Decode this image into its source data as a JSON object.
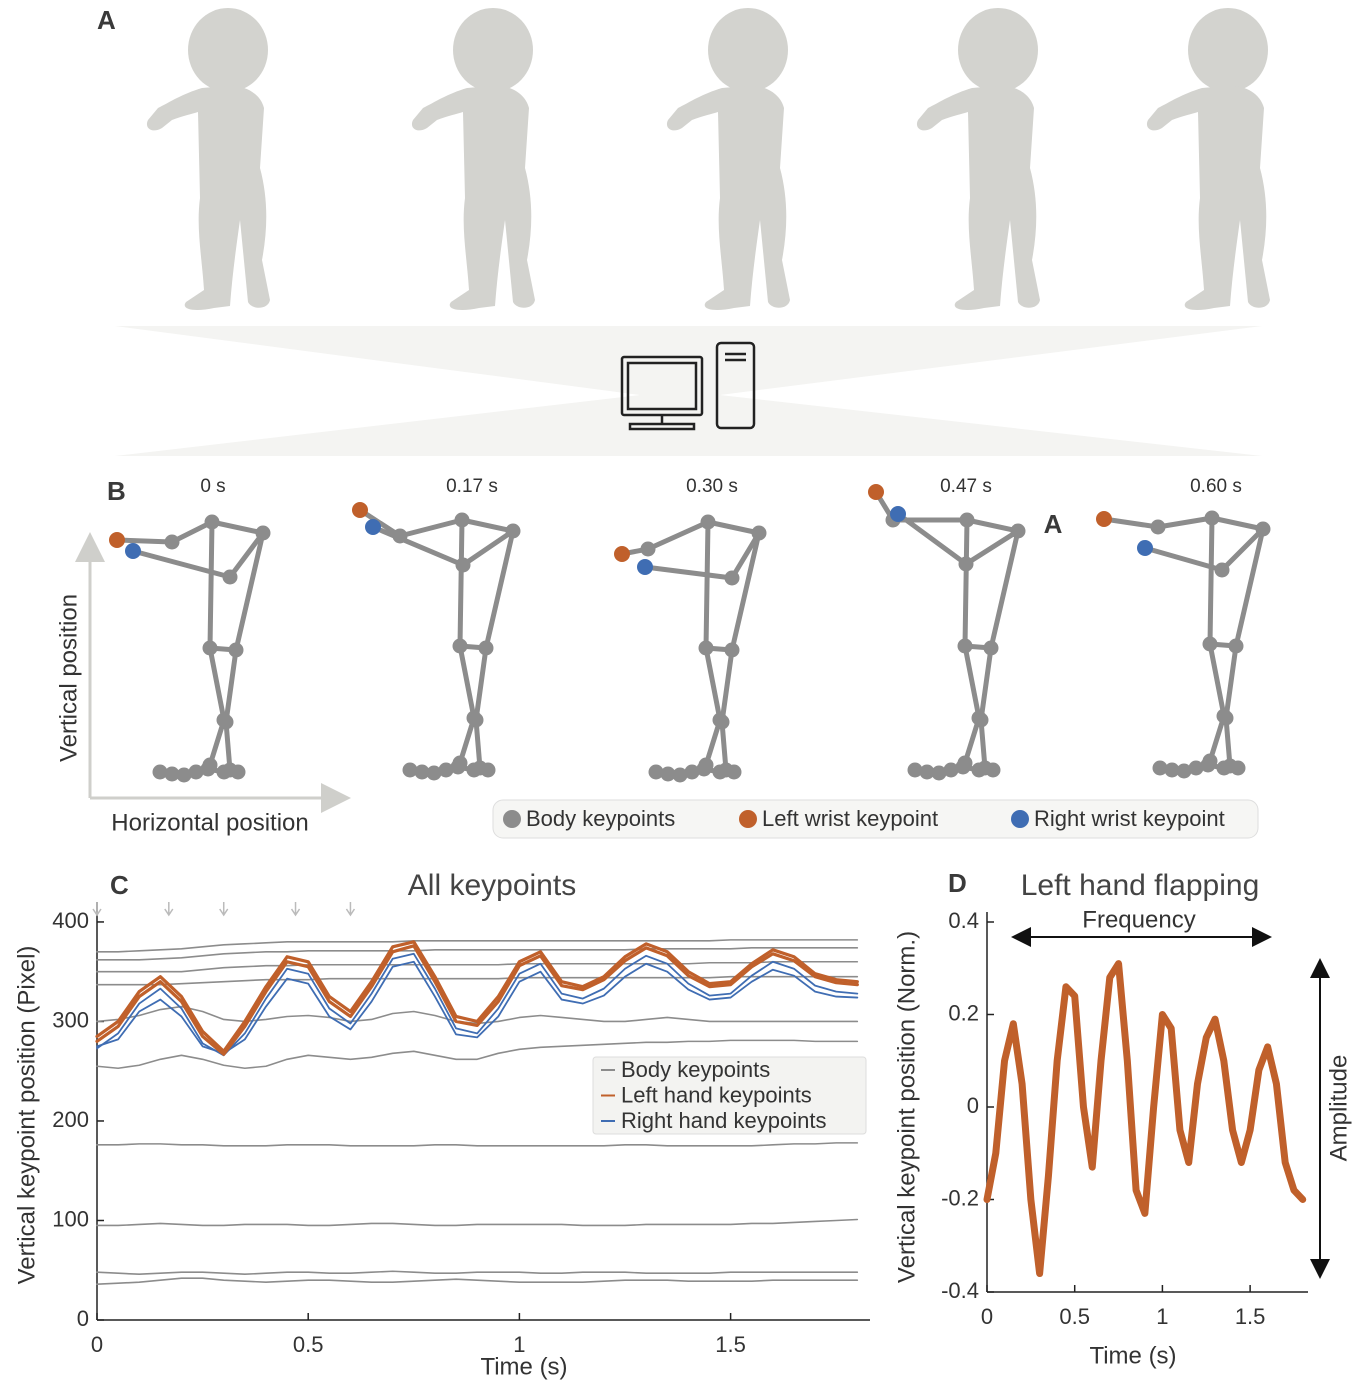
{
  "panel_labels": [
    "A",
    "B",
    "C",
    "D"
  ],
  "skeleton_panel": {
    "frame_times": [
      "0 s",
      "0.17 s",
      "0.30 s",
      "0.47 s",
      "0.60 s"
    ],
    "stray_label": "A",
    "x_label": "Horizontal position",
    "y_label": "Vertical position",
    "legend": [
      {
        "label": "Body keypoints",
        "color": "#8c8c8c"
      },
      {
        "label": "Left wrist keypoint",
        "color": "#c0602b"
      },
      {
        "label": "Right wrist keypoint",
        "color": "#3f6db3"
      }
    ]
  },
  "chart_data": [
    {
      "type": "line",
      "title": "All keypoints",
      "x_label": "Time (s)",
      "y_label": "Vertical keypoint position (Pixel)",
      "x": [
        0,
        0.05,
        0.1,
        0.15,
        0.2,
        0.25,
        0.3,
        0.35,
        0.4,
        0.45,
        0.5,
        0.55,
        0.6,
        0.65,
        0.7,
        0.75,
        0.8,
        0.85,
        0.9,
        0.95,
        1,
        1.05,
        1.1,
        1.15,
        1.2,
        1.25,
        1.3,
        1.35,
        1.4,
        1.45,
        1.5,
        1.55,
        1.6,
        1.65,
        1.7,
        1.75,
        1.8
      ],
      "xlim": [
        0,
        1.83
      ],
      "ylim": [
        0,
        410
      ],
      "xticks": [
        0,
        0.5,
        1,
        1.5
      ],
      "yticks": [
        0,
        100,
        200,
        300,
        400
      ],
      "frame_markers": [
        0,
        0.17,
        0.3,
        0.47,
        0.6
      ],
      "legend": true,
      "series": [
        {
          "name": "Body keypoints",
          "color": "#8c8c8c",
          "values": [
            [
              370,
              370,
              371,
              372,
              373,
              375,
              377,
              378,
              379,
              380,
              380,
              380,
              380,
              380,
              380,
              381,
              381,
              381,
              381,
              381,
              381,
              381,
              381,
              381,
              381,
              381,
              381,
              381,
              381,
              381,
              382,
              382,
              382,
              382,
              382,
              382,
              382
            ],
            [
              362,
              362,
              362,
              363,
              364,
              366,
              368,
              369,
              370,
              370,
              371,
              371,
              371,
              371,
              371,
              371,
              372,
              372,
              372,
              372,
              372,
              372,
              372,
              372,
              372,
              372,
              373,
              373,
              373,
              373,
              373,
              374,
              374,
              374,
              374,
              374,
              374
            ],
            [
              350,
              350,
              350,
              350,
              350,
              352,
              354,
              355,
              356,
              356,
              357,
              357,
              357,
              357,
              357,
              357,
              357,
              357,
              357,
              357,
              358,
              358,
              358,
              358,
              358,
              358,
              358,
              358,
              358,
              359,
              359,
              359,
              360,
              360,
              360,
              360,
              360
            ],
            [
              337,
              337,
              337,
              337,
              338,
              339,
              340,
              341,
              342,
              342,
              342,
              343,
              343,
              343,
              343,
              343,
              343,
              343,
              343,
              343,
              344,
              344,
              344,
              344,
              344,
              344,
              344,
              344,
              344,
              344,
              345,
              345,
              345,
              345,
              345,
              345,
              345
            ],
            [
              300,
              302,
              306,
              312,
              315,
              310,
              302,
              300,
              302,
              305,
              306,
              304,
              300,
              302,
              308,
              310,
              306,
              300,
              298,
              300,
              304,
              306,
              304,
              302,
              300,
              300,
              302,
              304,
              302,
              300,
              300,
              300,
              300,
              300,
              300,
              300,
              300
            ],
            [
              255,
              253,
              256,
              262,
              266,
              262,
              256,
              253,
              255,
              262,
              266,
              264,
              262,
              264,
              268,
              270,
              266,
              262,
              262,
              268,
              272,
              274,
              275,
              276,
              277,
              278,
              279,
              279,
              280,
              280,
              281,
              281,
              281,
              281,
              280,
              280,
              280
            ],
            [
              176,
              176,
              177,
              177,
              176,
              176,
              175,
              175,
              175,
              176,
              176,
              176,
              175,
              175,
              175,
              175,
              176,
              176,
              175,
              175,
              175,
              175,
              175,
              175,
              175,
              176,
              176,
              175,
              175,
              175,
              175,
              175,
              176,
              177,
              177,
              178,
              178
            ],
            [
              95,
              95,
              96,
              97,
              96,
              95,
              95,
              96,
              96,
              96,
              95,
              95,
              96,
              97,
              97,
              96,
              95,
              95,
              96,
              96,
              96,
              96,
              96,
              95,
              95,
              95,
              96,
              96,
              96,
              96,
              96,
              97,
              97,
              98,
              99,
              100,
              101
            ],
            [
              48,
              47,
              46,
              47,
              48,
              48,
              47,
              46,
              47,
              48,
              48,
              47,
              47,
              48,
              49,
              48,
              47,
              47,
              48,
              48,
              48,
              47,
              47,
              48,
              48,
              48,
              47,
              47,
              47,
              47,
              48,
              48,
              48,
              48,
              48,
              48,
              48
            ],
            [
              36,
              37,
              38,
              40,
              42,
              42,
              40,
              39,
              38,
              39,
              40,
              40,
              39,
              38,
              38,
              39,
              40,
              41,
              40,
              39,
              38,
              38,
              38,
              38,
              39,
              40,
              40,
              40,
              39,
              39,
              39,
              39,
              40,
              40,
              40,
              40,
              40
            ]
          ]
        },
        {
          "name": "Left hand keypoints",
          "color": "#c0602b",
          "values": [
            [
              285,
              300,
              330,
              345,
              325,
              290,
              270,
              300,
              335,
              365,
              360,
              325,
              310,
              340,
              375,
              380,
              345,
              305,
              300,
              325,
              360,
              370,
              340,
              335,
              345,
              365,
              378,
              370,
              350,
              338,
              340,
              358,
              372,
              365,
              348,
              342,
              340
            ],
            [
              280,
              295,
              325,
              340,
              320,
              285,
              267,
              295,
              330,
              360,
              355,
              320,
              305,
              335,
              370,
              376,
              340,
              300,
              296,
              320,
              356,
              366,
              336,
              332,
              342,
              361,
              374,
              366,
              346,
              335,
              337,
              355,
              368,
              361,
              345,
              339,
              337
            ]
          ]
        },
        {
          "name": "Right hand keypoints",
          "color": "#3f6db3",
          "values": [
            [
              273,
              288,
              318,
              333,
              313,
              278,
              266,
              288,
              323,
              353,
              348,
              313,
              298,
              328,
              363,
              368,
              333,
              293,
              288,
              313,
              348,
              358,
              328,
              323,
              333,
              353,
              366,
              358,
              338,
              326,
              328,
              346,
              360,
              353,
              336,
              330,
              328
            ],
            [
              275,
              282,
              310,
              322,
              305,
              275,
              268,
              282,
              315,
              343,
              338,
              305,
              292,
              320,
              355,
              360,
              325,
              287,
              284,
              305,
              340,
              350,
              322,
              318,
              326,
              345,
              358,
              350,
              332,
              322,
              324,
              340,
              352,
              346,
              330,
              325,
              324
            ]
          ]
        }
      ]
    },
    {
      "type": "line",
      "title": "Left hand flapping",
      "x_label": "Time (s)",
      "y_label": "Vertical keypoint position (Norm.)",
      "annotations": [
        "Frequency",
        "Amplitude"
      ],
      "x": [
        0,
        0.05,
        0.1,
        0.15,
        0.2,
        0.25,
        0.3,
        0.35,
        0.4,
        0.45,
        0.5,
        0.55,
        0.6,
        0.65,
        0.7,
        0.75,
        0.8,
        0.85,
        0.9,
        0.95,
        1,
        1.05,
        1.1,
        1.15,
        1.2,
        1.25,
        1.3,
        1.35,
        1.4,
        1.45,
        1.5,
        1.55,
        1.6,
        1.65,
        1.7,
        1.75,
        1.8
      ],
      "values": [
        -0.2,
        -0.1,
        0.1,
        0.18,
        0.05,
        -0.2,
        -0.36,
        -0.15,
        0.1,
        0.26,
        0.24,
        0,
        -0.13,
        0.1,
        0.28,
        0.31,
        0.1,
        -0.18,
        -0.23,
        0,
        0.2,
        0.17,
        -0.05,
        -0.12,
        0.05,
        0.15,
        0.19,
        0.1,
        -0.05,
        -0.12,
        -0.05,
        0.08,
        0.13,
        0.05,
        -0.12,
        -0.18,
        -0.2
      ],
      "color": "#c0602b",
      "xlim": [
        0,
        1.83
      ],
      "ylim": [
        -0.4,
        0.4
      ],
      "xticks": [
        0,
        0.5,
        1,
        1.5
      ],
      "yticks": [
        -0.4,
        -0.2,
        0,
        0.2,
        0.4
      ]
    }
  ]
}
